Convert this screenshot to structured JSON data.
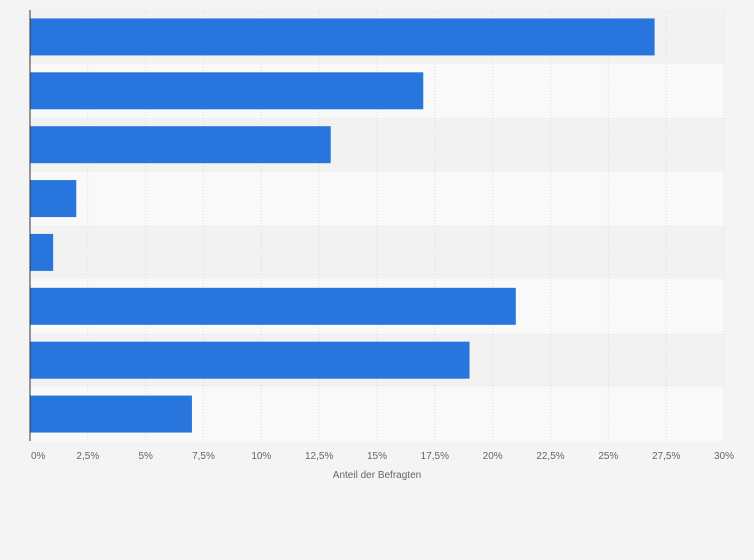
{
  "chart_data": {
    "type": "bar",
    "orientation": "horizontal",
    "categories": [
      "",
      "",
      "",
      "",
      "",
      "",
      "",
      ""
    ],
    "values": [
      27,
      17,
      13,
      2,
      1,
      21,
      19,
      7
    ],
    "xlabel": "Anteil der Befragten",
    "ylabel": "",
    "xlim": [
      0,
      30
    ],
    "ticks": [
      0,
      2.5,
      5,
      7.5,
      10,
      12.5,
      15,
      17.5,
      20,
      22.5,
      25,
      27.5,
      30
    ],
    "tick_labels": [
      "0%",
      "2,5%",
      "5%",
      "7,5%",
      "10%",
      "12,5%",
      "15%",
      "17,5%",
      "20%",
      "22,5%",
      "25%",
      "27,5%",
      "30%"
    ],
    "grid": true,
    "legend": "none",
    "colors": {
      "bar": "#2876dd",
      "band_light": "#f9f9f9",
      "band_dark": "#f2f2f2",
      "grid": "#dcdcdc",
      "axis": "#333333",
      "text": "#666666"
    }
  }
}
